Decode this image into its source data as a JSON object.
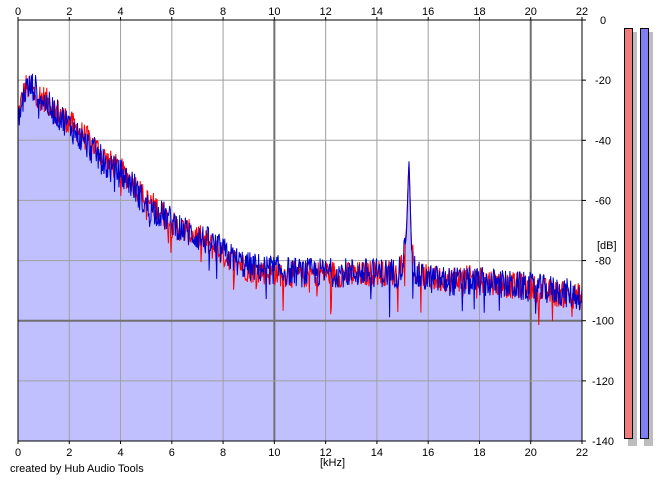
{
  "footer": {
    "credit": "created by Hub Audio Tools"
  },
  "meters": {
    "left_color": "#f07c7c",
    "right_color": "#7f7ff0",
    "left_level": 1.0,
    "right_level": 1.0
  },
  "colors": {
    "fill": "#c0c0ff",
    "series_left": "#ff0000",
    "series_right": "#0000cc",
    "grid": "#a0a0a0",
    "grid_major": "#707070"
  },
  "chart_data": {
    "type": "line",
    "title": "",
    "xlabel": "[kHz]",
    "ylabel": "[dB]",
    "xlim": [
      0,
      22
    ],
    "ylim": [
      -140,
      0
    ],
    "x_ticks": [
      0,
      2,
      4,
      6,
      8,
      10,
      12,
      14,
      16,
      18,
      20,
      22
    ],
    "y_ticks": [
      0,
      -20,
      -40,
      -60,
      -80,
      -100,
      -120,
      -140
    ],
    "y_tick_labels": [
      "0",
      "-20",
      "-40",
      "-60",
      "-80",
      "-100",
      "-120",
      "-140"
    ],
    "grid": true,
    "fill_under": true,
    "series": [
      {
        "x": [
          0,
          0.1,
          0.3,
          0.6,
          1.0,
          1.5,
          2.0,
          2.5,
          3.0,
          3.5,
          4.0,
          4.5,
          5.0,
          5.5,
          6.0,
          6.5,
          7.0,
          7.5,
          8.0,
          8.5,
          9.0,
          10.0,
          11.0,
          12.0,
          13.0,
          14.0,
          14.8,
          15.0,
          15.15,
          15.25,
          15.35,
          15.5,
          16.0,
          17.0,
          18.0,
          19.0,
          20.0,
          21.0,
          22.0
        ],
        "y": [
          -32,
          -28,
          -22,
          -24,
          -26,
          -30,
          -34,
          -38,
          -42,
          -47,
          -50,
          -54,
          -60,
          -63,
          -68,
          -70,
          -72,
          -75,
          -78,
          -80,
          -83,
          -84,
          -85,
          -84,
          -85,
          -84,
          -84,
          -80,
          -70,
          -47,
          -75,
          -84,
          -86,
          -86,
          -86,
          -88,
          -89,
          -91,
          -92
        ]
      },
      {
        "x": [
          0,
          0.1,
          0.3,
          0.6,
          1.0,
          1.5,
          2.0,
          2.5,
          3.0,
          3.5,
          4.0,
          4.5,
          5.0,
          5.5,
          6.0,
          6.5,
          7.0,
          7.5,
          8.0,
          8.5,
          9.0,
          10.0,
          11.0,
          12.0,
          13.0,
          14.0,
          14.8,
          15.0,
          15.15,
          15.25,
          15.35,
          15.5,
          16.0,
          17.0,
          18.0,
          19.0,
          20.0,
          21.0,
          22.0
        ],
        "y": [
          -34,
          -30,
          -23,
          -22,
          -27,
          -31,
          -35,
          -40,
          -44,
          -49,
          -51,
          -55,
          -62,
          -64,
          -67,
          -70,
          -72,
          -74,
          -77,
          -80,
          -82,
          -83,
          -84,
          -84,
          -84,
          -84,
          -84,
          -81,
          -72,
          -46,
          -76,
          -85,
          -86,
          -87,
          -87,
          -88,
          -89,
          -90,
          -92
        ]
      }
    ]
  }
}
